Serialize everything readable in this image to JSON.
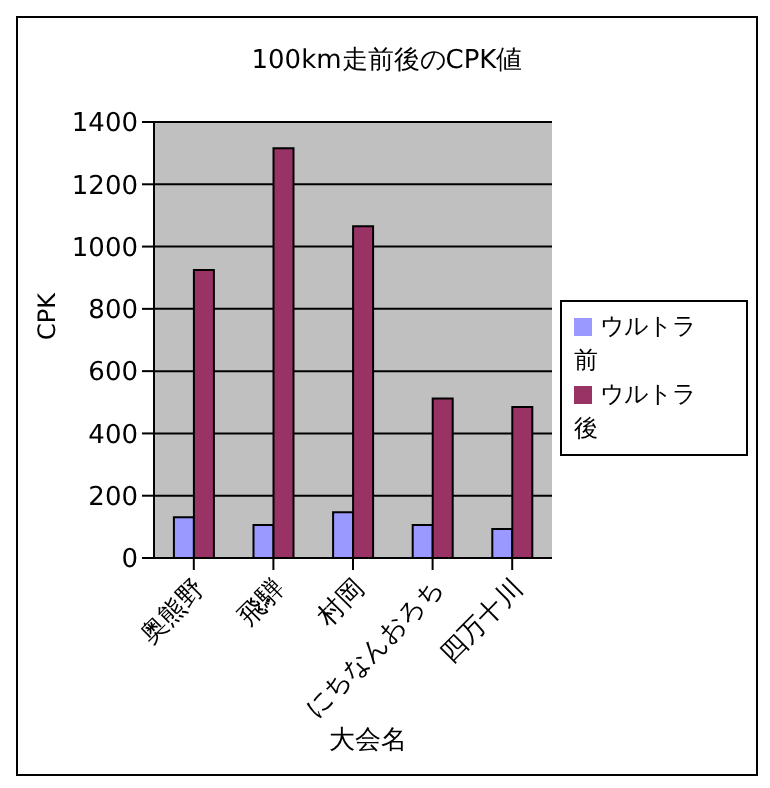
{
  "chart_data": {
    "type": "bar",
    "title": "100km走前後のCPK値",
    "xlabel": "大会名",
    "ylabel": "CPK",
    "categories": [
      "奥熊野",
      "飛騨",
      "村岡",
      "にちなんおろち",
      "四万十川"
    ],
    "series": [
      {
        "name": "ウルトラ前",
        "color": "#9999ff",
        "values": [
          131,
          106,
          147,
          106,
          93
        ]
      },
      {
        "name": "ウルトラ後",
        "color": "#993366",
        "values": [
          925,
          1316,
          1065,
          512,
          485
        ]
      }
    ],
    "ylim": [
      0,
      1400
    ],
    "yticks": [
      0,
      200,
      400,
      600,
      800,
      1000,
      1200,
      1400
    ],
    "grid": "y",
    "legend": "right"
  }
}
